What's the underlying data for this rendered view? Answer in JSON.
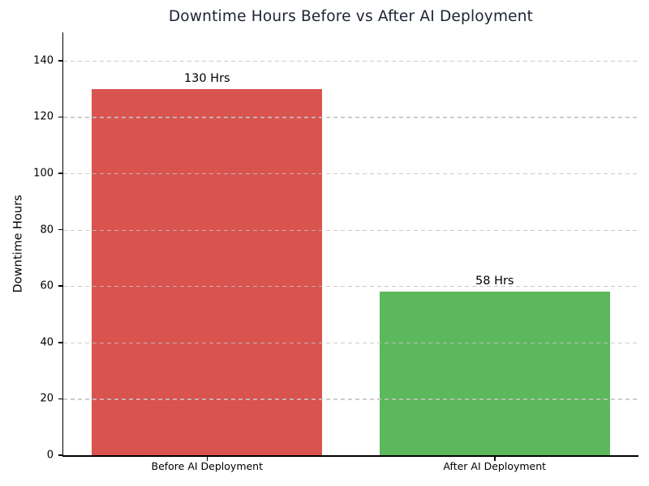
{
  "figure": {
    "background": "#ffffff",
    "axis_color": "#000000",
    "grid_color": "#c3c3c3",
    "title_color": "#1c2433"
  },
  "chart_data": {
    "type": "bar",
    "title": "Downtime Hours Before vs After AI Deployment",
    "xlabel": "",
    "ylabel": "Downtime Hours",
    "categories": [
      "Before AI Deployment",
      "After AI Deployment"
    ],
    "values": [
      130,
      58
    ],
    "bar_labels": [
      "130 Hrs",
      "58 Hrs"
    ],
    "bar_colors": [
      "#d9534f",
      "#5cb85c"
    ],
    "ylim": [
      0,
      150
    ],
    "yticks": [
      0,
      20,
      40,
      60,
      80,
      100,
      120,
      140
    ],
    "bar_width_fraction": 0.8,
    "grid": "horizontal-dashed",
    "legend": "none"
  }
}
